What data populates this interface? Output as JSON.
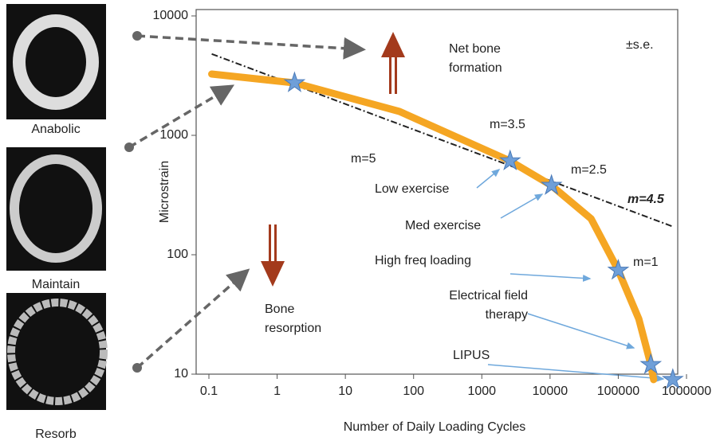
{
  "chart_data": {
    "type": "line",
    "log_x": true,
    "log_y": true,
    "x_label": "Number of Daily Loading Cycles",
    "y_label": "Microstrain",
    "xlim": [
      0.1,
      1000000
    ],
    "xticks": [
      0.1,
      1,
      10,
      100,
      1000,
      10000,
      100000,
      1000000
    ],
    "ylim": [
      10,
      10000
    ],
    "yticks": [
      10,
      100,
      1000,
      10000
    ],
    "curve": {
      "color": "#f5a623",
      "x": [
        0.11,
        1.8,
        62,
        2600,
        10500,
        40000,
        100000,
        200000,
        300000,
        330000
      ],
      "values": [
        3260,
        2750,
        1585,
        610,
        380,
        200,
        74,
        29,
        12,
        9
      ]
    },
    "trend": {
      "color": "#222222",
      "x": [
        0.11,
        650000
      ],
      "values": [
        4800,
        171
      ]
    },
    "points": {
      "color": "#6f9fd8",
      "x": [
        1.8,
        2600,
        10500,
        100000,
        300000,
        630000
      ],
      "values": [
        2750,
        610,
        380,
        74,
        12,
        9
      ]
    },
    "annotations": [
      "±s.e.",
      [
        "Net bone",
        "formation"
      ],
      "m=3.5",
      "m=5",
      "m=2.5",
      "m=4.5",
      "Low exercise",
      "Med exercise",
      "High freq loading",
      "m=1",
      [
        "Electrical field",
        "therapy"
      ],
      "LIPUS",
      [
        "Bone",
        "resorption"
      ]
    ],
    "images": [
      "Anabolic",
      "Maintain",
      "Resorb"
    ]
  }
}
